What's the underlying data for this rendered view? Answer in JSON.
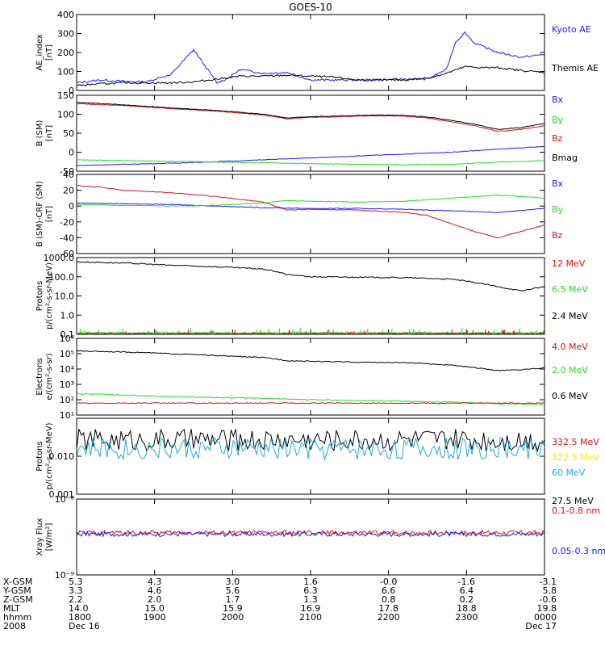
{
  "title": "GOES-10",
  "colors": {
    "blue": "#1a1aff",
    "green": "#22dd22",
    "red": "#dd1111",
    "black": "#000000",
    "yellow": "#ffee00",
    "cyan": "#22aadd"
  },
  "chart_data": [
    {
      "type": "line",
      "ylabel": [
        "AE_index",
        "[nT]"
      ],
      "scale": "linear",
      "ylim": [
        0,
        400
      ],
      "yticks": [
        "400",
        "300",
        "200",
        "100",
        "0"
      ],
      "ytick_values": [
        400,
        300,
        200,
        100,
        0
      ],
      "legend": [
        "Kyoto AE",
        "Themis AE"
      ],
      "series": [
        {
          "name": "Kyoto AE",
          "color": "blue",
          "x": [
            0,
            0.5,
            1,
            1.5,
            1.8,
            2,
            2.5,
            3,
            3.2,
            3.5,
            4,
            4.5,
            5,
            5.5,
            6,
            6.5,
            7,
            7.5,
            7.9,
            8.1,
            8.3,
            8.5,
            8.7,
            9,
            9.5,
            10
          ],
          "y": [
            40,
            55,
            48,
            45,
            70,
            80,
            215,
            40,
            60,
            110,
            90,
            95,
            55,
            55,
            55,
            55,
            60,
            60,
            110,
            255,
            305,
            250,
            230,
            200,
            175,
            190
          ]
        },
        {
          "name": "Themis AE",
          "color": "black",
          "x": [
            0,
            0.5,
            1,
            1.5,
            2,
            2.5,
            3,
            3.5,
            4,
            4.5,
            5,
            5.5,
            6,
            6.5,
            7,
            7.5,
            7.9,
            8.3,
            8.7,
            9,
            9.5,
            10
          ],
          "y": [
            25,
            35,
            40,
            40,
            40,
            45,
            60,
            75,
            75,
            80,
            75,
            70,
            55,
            55,
            55,
            65,
            90,
            125,
            120,
            120,
            105,
            95
          ]
        }
      ]
    },
    {
      "type": "line",
      "ylabel": [
        "B (SM)",
        "[nT]"
      ],
      "scale": "linear",
      "ylim": [
        -50,
        150
      ],
      "yticks": [
        "150",
        "100",
        "50",
        "0",
        "-50"
      ],
      "ytick_values": [
        150,
        100,
        50,
        0,
        -50
      ],
      "legend": [
        "Bx",
        "By",
        "Bz",
        "Bmag"
      ],
      "series": [
        {
          "name": "Bx",
          "color": "blue",
          "x": [
            0,
            1,
            2,
            3,
            4,
            5,
            6,
            7,
            8,
            9,
            10
          ],
          "y": [
            -35,
            -32,
            -29,
            -25,
            -20,
            -15,
            -10,
            -5,
            0,
            8,
            15
          ]
        },
        {
          "name": "By",
          "color": "green",
          "x": [
            0,
            1,
            2,
            3,
            4,
            5,
            6,
            7,
            8,
            9,
            10
          ],
          "y": [
            -20,
            -22,
            -24,
            -26,
            -28,
            -30,
            -32,
            -33,
            -32,
            -26,
            -22
          ]
        },
        {
          "name": "Bz",
          "color": "red",
          "x": [
            0,
            1,
            2,
            3,
            4,
            4.5,
            5,
            5.5,
            6,
            6.5,
            7,
            7.5,
            8,
            8.5,
            9,
            9.5,
            10
          ],
          "y": [
            128,
            123,
            115,
            108,
            98,
            88,
            92,
            93,
            95,
            96,
            95,
            90,
            80,
            70,
            55,
            60,
            70
          ]
        },
        {
          "name": "Bmag",
          "color": "black",
          "x": [
            0,
            1,
            2,
            3,
            4,
            4.5,
            5,
            5.5,
            6,
            6.5,
            7,
            7.5,
            8,
            8.5,
            9,
            9.5,
            10
          ],
          "y": [
            131,
            125,
            117,
            110,
            100,
            90,
            94,
            95,
            97,
            98,
            97,
            93,
            84,
            74,
            60,
            65,
            76
          ]
        }
      ]
    },
    {
      "type": "line",
      "ylabel": [
        "B (SM)-CRF (SM)",
        "[nT]"
      ],
      "scale": "linear",
      "ylim": [
        -60,
        40
      ],
      "yticks": [
        "40",
        "20",
        "0",
        "-20",
        "-40",
        "-60"
      ],
      "ytick_values": [
        40,
        20,
        0,
        -20,
        -40,
        -60
      ],
      "legend": [
        "Bx",
        "By",
        "Bz"
      ],
      "series": [
        {
          "name": "Bx",
          "color": "blue",
          "x": [
            0,
            1,
            2,
            3,
            4,
            5,
            6,
            7,
            8,
            9,
            10
          ],
          "y": [
            4,
            3,
            2,
            0,
            -2,
            -3,
            -3,
            -4,
            -6,
            -8,
            -3
          ]
        },
        {
          "name": "By",
          "color": "green",
          "x": [
            0,
            1,
            2,
            3,
            4,
            4.5,
            5,
            6,
            7,
            8,
            9,
            10
          ],
          "y": [
            2,
            1,
            0,
            1,
            4,
            7,
            6,
            5,
            6,
            10,
            14,
            10
          ]
        },
        {
          "name": "Bz",
          "color": "red",
          "x": [
            0,
            0.5,
            1,
            2,
            3,
            4,
            4.5,
            5,
            6,
            7,
            7.5,
            8,
            8.5,
            9,
            9.5,
            10
          ],
          "y": [
            26,
            24,
            20,
            17,
            12,
            5,
            -5,
            -4,
            -5,
            -8,
            -12,
            -22,
            -32,
            -40,
            -32,
            -24
          ]
        }
      ]
    },
    {
      "type": "line",
      "ylabel": [
        "Protons",
        "p/(cm²-s-sr-MeV)"
      ],
      "scale": "log",
      "ylim": [
        0.1,
        1000
      ],
      "yticks": [
        "1000.0",
        "100.0",
        "10.0",
        "1.0",
        "0.1"
      ],
      "ytick_values": [
        1000,
        100,
        10,
        1,
        0.1
      ],
      "legend": [
        "12 MeV",
        "6.5 MeV",
        "2.4 MeV"
      ],
      "series": [
        {
          "name": "2.4 MeV",
          "color": "black",
          "x": [
            0,
            1,
            2,
            3,
            4,
            4.5,
            5,
            6,
            7,
            8,
            8.5,
            9,
            9.5,
            10
          ],
          "y": [
            600,
            520,
            400,
            330,
            250,
            130,
            100,
            95,
            90,
            75,
            50,
            30,
            18,
            30
          ]
        },
        {
          "name": "6.5 MeV",
          "color": "green",
          "x": [
            0,
            10
          ],
          "y": [
            0.12,
            0.12
          ]
        },
        {
          "name": "12 MeV",
          "color": "red",
          "x": [
            0,
            10
          ],
          "y": [
            0.11,
            0.11
          ]
        }
      ]
    },
    {
      "type": "line",
      "ylabel": [
        "Electrons",
        "e/(cm²-s-sr)"
      ],
      "scale": "log",
      "ylim": [
        10,
        1000000
      ],
      "yticks": [
        "10⁶",
        "10⁵",
        "10⁴",
        "10³",
        "10²",
        "10¹"
      ],
      "ytick_values": [
        1000000,
        100000,
        10000,
        1000,
        100,
        10
      ],
      "legend": [
        "4.0 MeV",
        "2.0 MeV",
        "0.6 MeV"
      ],
      "series": [
        {
          "name": "0.6 MeV",
          "color": "black",
          "x": [
            0,
            1,
            2,
            3,
            4,
            4.5,
            5,
            6,
            7,
            7.5,
            8,
            8.5,
            9,
            9.5,
            10
          ],
          "y": [
            150000,
            130000,
            100000,
            75000,
            55000,
            35000,
            32000,
            28000,
            26000,
            22000,
            18000,
            12000,
            8000,
            9000,
            12000
          ]
        },
        {
          "name": "2.0 MeV",
          "color": "green",
          "x": [
            0,
            1,
            2,
            3,
            4,
            5,
            6,
            7,
            8,
            9,
            10
          ],
          "y": [
            250,
            200,
            160,
            140,
            120,
            100,
            90,
            80,
            70,
            55,
            50
          ]
        },
        {
          "name": "4.0 MeV",
          "color": "red",
          "x": [
            0,
            10
          ],
          "y": [
            60,
            60
          ]
        }
      ]
    },
    {
      "type": "line",
      "ylabel": [
        "Protons",
        "p/(cm²-s-sr-MeV)"
      ],
      "scale": "log",
      "ylim": [
        0.001,
        0.1
      ],
      "yticks": [
        "0.010",
        "0.001"
      ],
      "ytick_values": [
        0.01,
        0.001
      ],
      "legend": [
        "332.5 MeV",
        "122.5 MeV",
        "60 MeV",
        "27.5 MeV"
      ],
      "series": [
        {
          "name": "27.5 MeV",
          "color": "black",
          "x": [
            0,
            10
          ],
          "y": [
            0.025,
            0.025
          ]
        },
        {
          "name": "60 MeV",
          "color": "cyan",
          "x": [
            0,
            10
          ],
          "y": [
            0.015,
            0.015
          ]
        }
      ]
    },
    {
      "type": "line",
      "ylabel": [
        "Xray Flux",
        "[W/m²]"
      ],
      "scale": "log",
      "ylim": [
        1e-09,
        1e-08
      ],
      "yticks": [
        "10⁻⁸",
        "10⁻⁹"
      ],
      "ytick_values": [
        1e-08,
        1e-09
      ],
      "legend": [
        "0.1-0.8 nm",
        "0.05-0.3 nm"
      ],
      "series": [
        {
          "name": "0.1-0.8 nm",
          "color": "red",
          "x": [
            0,
            10
          ],
          "y": [
            3.6e-09,
            3.6e-09
          ]
        },
        {
          "name": "0.05-0.3 nm",
          "color": "blue",
          "x": [
            0,
            10
          ],
          "y": [
            3.45e-09,
            3.45e-09
          ]
        }
      ]
    }
  ],
  "footer": {
    "row_labels": [
      "X-GSM",
      "Y-GSM",
      "Z-GSM",
      "MLT",
      "hhmm",
      "2008"
    ],
    "columns": [
      [
        "5.3",
        "4.3",
        "3.0",
        "1.6",
        "-0.0",
        "-1.6",
        "-3.1"
      ],
      [
        "3.3",
        "4.6",
        "5.6",
        "6.3",
        "6.6",
        "6.4",
        "5.8"
      ],
      [
        "2.2",
        "2.0",
        "1.7",
        "1.3",
        "0.8",
        "0.2",
        "-0.6"
      ],
      [
        "14.0",
        "15.0",
        "15.9",
        "16.9",
        "17.8",
        "18.8",
        "19.8"
      ],
      [
        "1800",
        "1900",
        "2000",
        "2100",
        "2200",
        "2300",
        "0000"
      ],
      [
        "Dec 16",
        "",
        "",
        "",
        "",
        "",
        "Dec 17"
      ]
    ]
  }
}
